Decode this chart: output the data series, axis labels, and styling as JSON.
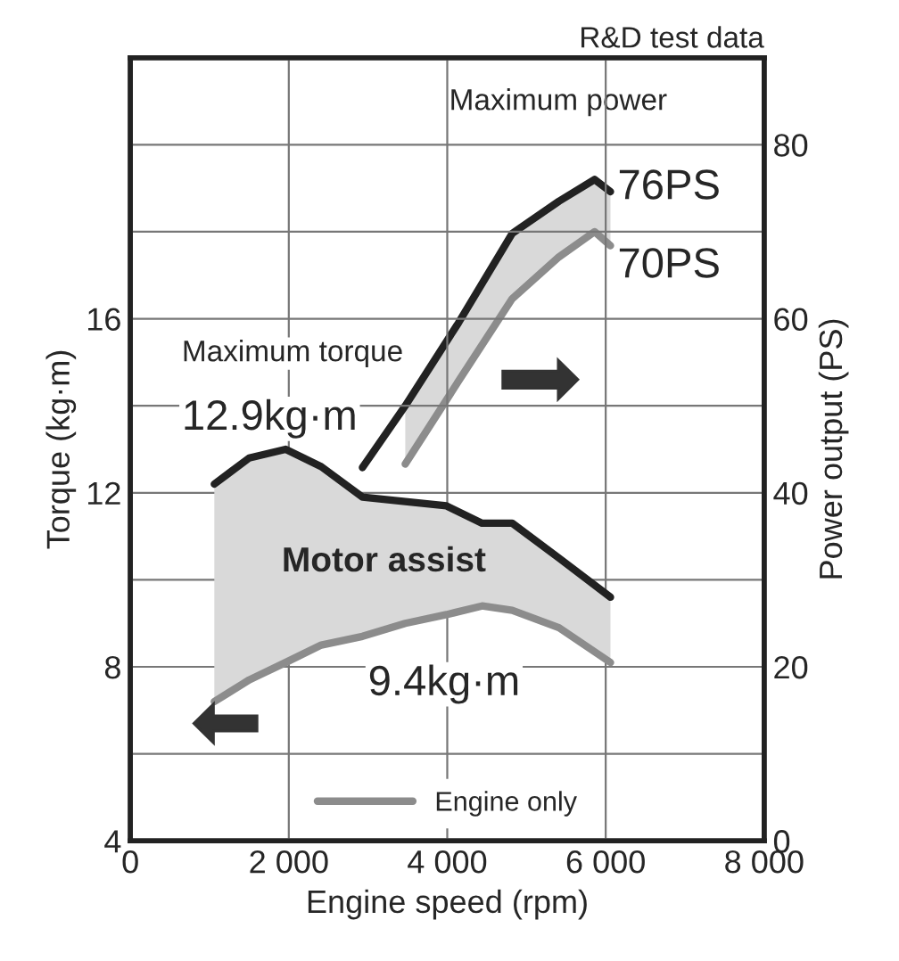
{
  "chart_data": {
    "type": "line",
    "xlabel": "Engine speed (rpm)",
    "ylabel": "Torque (kg·m)",
    "y2label": "Power output (PS)",
    "xlim": [
      0,
      8000
    ],
    "xticks": [
      0,
      {
        "value": 2000,
        "label": "2 000"
      },
      {
        "value": 4000,
        "label": "4 000"
      },
      {
        "value": 6000,
        "label": "6 000"
      },
      {
        "value": 8000,
        "label": "8 000"
      }
    ],
    "ylim": [
      4,
      22
    ],
    "yticks": [
      4,
      {
        "value": 6,
        "label": null
      },
      8,
      {
        "value": 10,
        "label": null
      },
      12,
      {
        "value": 14,
        "label": null
      },
      16,
      {
        "value": 18,
        "label": null
      },
      {
        "value": 20,
        "label": null
      }
    ],
    "y2lim": [
      0,
      90
    ],
    "y2ticks": [
      0,
      20,
      40,
      60,
      80
    ],
    "grid": true,
    "legend": "bottom",
    "series": [
      {
        "color": "#222222",
        "x": [
          1060,
          1500,
          1960,
          2410,
          2930,
          3470,
          3990,
          4440,
          4820,
          5410,
          6060
        ],
        "values": [
          12.2,
          12.8,
          13.0,
          12.6,
          11.9,
          11.8,
          11.7,
          11.3,
          11.3,
          10.5,
          9.6
        ],
        "lower": [
          7.2,
          7.7,
          8.1,
          8.5,
          8.7,
          9.0,
          9.2,
          9.4,
          9.3,
          8.9,
          8.1
        ],
        "upper": [
          12.2,
          12.8,
          13.0,
          12.6,
          11.9,
          11.8,
          11.7,
          11.3,
          11.3,
          10.5,
          9.6
        ]
      },
      {
        "name": "Engine only",
        "color": "#8c8c8c",
        "x": [
          1060,
          1500,
          1960,
          2410,
          2930,
          3470,
          3990,
          4440,
          4820,
          5410,
          6060
        ],
        "values": [
          7.2,
          7.7,
          8.1,
          8.5,
          8.7,
          9.0,
          9.2,
          9.4,
          9.3,
          8.9,
          8.1
        ]
      },
      {
        "color": "#222222",
        "axis": "y2",
        "x": [
          2930,
          3470,
          4140,
          4820,
          5410,
          5860,
          6060
        ],
        "values": [
          42.9,
          50.0,
          59.5,
          69.8,
          73.5,
          76,
          74.6
        ],
        "lower": [
          null,
          43.3,
          52.8,
          62.3,
          67.1,
          70,
          68.4
        ],
        "upper": [
          null,
          50.0,
          59.5,
          69.8,
          73.5,
          76,
          74.6
        ]
      },
      {
        "color": "#8c8c8c",
        "axis": "y2",
        "x": [
          3470,
          4140,
          4820,
          5410,
          5860,
          6060
        ],
        "values": [
          43.3,
          52.8,
          62.3,
          67.1,
          70,
          68.4
        ]
      }
    ],
    "annotations": [
      "R&D test data",
      "Maximum power",
      "76PS",
      "70PS",
      "Maximum torque",
      "12.9kg·m",
      "Motor assist",
      "9.4kg·m"
    ]
  }
}
